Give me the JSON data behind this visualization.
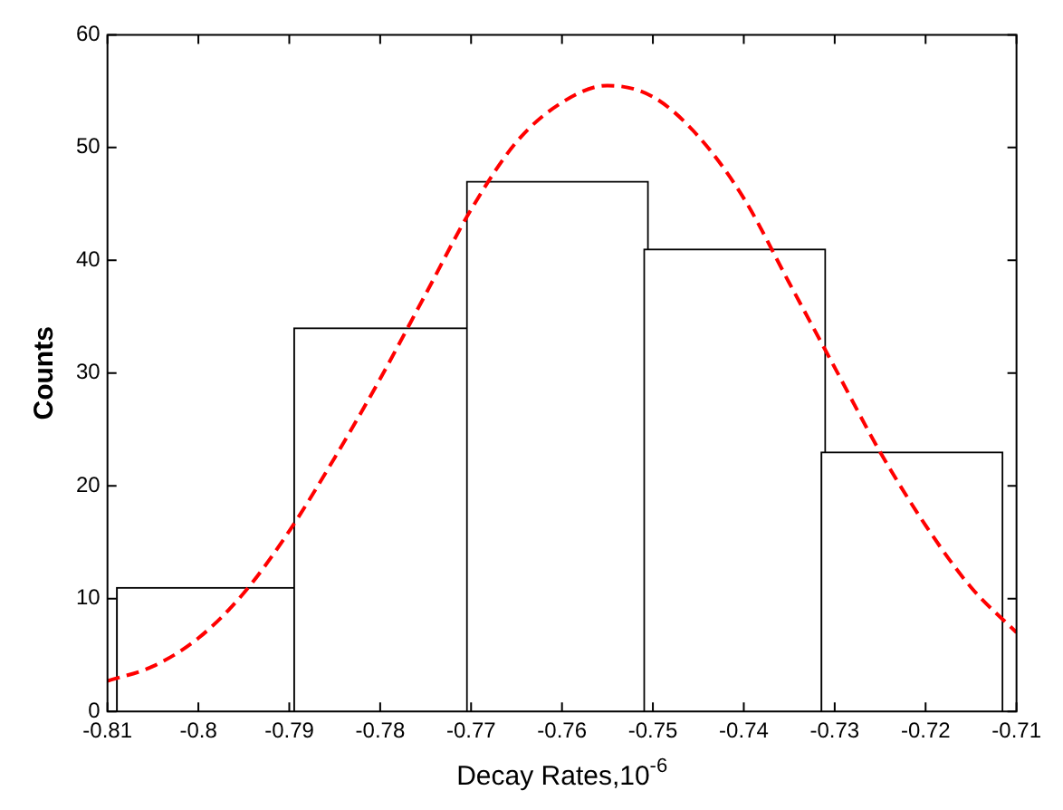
{
  "chart_data": {
    "type": "histogram",
    "xlabel": "Decay Rates,10$^{-6}$",
    "ylabel": "Counts",
    "bins": [
      -0.809,
      -0.789,
      -0.77,
      -0.751,
      -0.731,
      -0.712
    ],
    "values": [
      11,
      34,
      47,
      41,
      23
    ],
    "color": "#ffffff",
    "series": [
      {
        "type": "line",
        "color": "#ff0000",
        "line_style": "dashed",
        "marker": "none",
        "x": [
          -0.81,
          -0.805,
          -0.8,
          -0.795,
          -0.79,
          -0.785,
          -0.78,
          -0.775,
          -0.77,
          -0.765,
          -0.76,
          -0.755,
          -0.75,
          -0.745,
          -0.74,
          -0.735,
          -0.73,
          -0.725,
          -0.72,
          -0.715,
          -0.71
        ],
        "values": [
          2.7,
          4,
          6.5,
          10.5,
          16,
          22.5,
          29.5,
          37,
          44.5,
          50.5,
          54,
          55.5,
          54.5,
          51,
          45.5,
          38,
          30.5,
          23,
          16.5,
          11,
          7
        ]
      }
    ],
    "xlim": [
      -0.81,
      -0.71
    ],
    "xticks": [
      -0.81,
      -0.8,
      -0.79,
      -0.78,
      -0.77,
      -0.76,
      -0.75,
      -0.74,
      -0.73,
      -0.72,
      -0.71
    ],
    "ylim": [
      0,
      60
    ],
    "yticks": [
      0,
      10,
      20,
      30,
      40,
      50,
      60
    ],
    "grid": false,
    "legend": false
  }
}
